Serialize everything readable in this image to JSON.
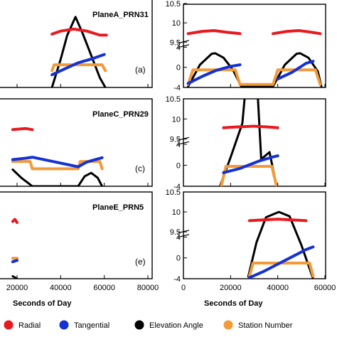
{
  "chart_data": {
    "type": "line",
    "x_axis_label": "Seconds of Day",
    "legend": {
      "placement": "bottom",
      "entries": [
        {
          "name": "Radial",
          "color": "#e8191f"
        },
        {
          "name": "Tangential",
          "color": "#1431d6"
        },
        {
          "name": "Elevation Angle",
          "color": "#000000"
        },
        {
          "name": "Station Number",
          "color": "#f29a3a"
        }
      ]
    },
    "left_x_ticks": [
      "20000",
      "40000",
      "60000",
      "80000"
    ],
    "right_x_ticks": [
      "0",
      "20000",
      "40000",
      "60000"
    ],
    "right_y_ticks": [
      "10.5",
      "10",
      "9.5",
      "4",
      "0",
      "-4"
    ],
    "panels": [
      {
        "title": "PlaneA_PRN31",
        "tag": "(a)",
        "left": {
          "radial": [
            [
              36000,
              8.3
            ],
            [
              40000,
              8.6
            ],
            [
              46000,
              8.8
            ],
            [
              52000,
              8.6
            ],
            [
              58000,
              8.2
            ],
            [
              61000,
              8.2
            ]
          ],
          "tangential": [
            [
              36000,
              0.2
            ],
            [
              42000,
              1.5
            ],
            [
              48000,
              2.8
            ],
            [
              54000,
              3.6
            ],
            [
              60000,
              4.6
            ]
          ],
          "elevation": [
            [
              36000,
              0
            ],
            [
              40000,
              35
            ],
            [
              43000,
              65
            ],
            [
              46800,
              88
            ],
            [
              50000,
              68
            ],
            [
              54000,
              40
            ],
            [
              58000,
              12
            ],
            [
              60500,
              0
            ]
          ],
          "station": [
            [
              36000,
              0.0
            ],
            [
              37000,
              1.0
            ],
            [
              59000,
              1.0
            ],
            [
              60500,
              0.0
            ]
          ]
        },
        "right": {
          "radial": [
            [
              2000,
              9.72
            ],
            [
              8000,
              9.78
            ],
            [
              13000,
              9.8
            ],
            [
              18000,
              9.76
            ],
            [
              24000,
              9.72
            ]
          ],
          "tangential": [
            [
              2000,
              -3.2
            ],
            [
              8000,
              -1.8
            ],
            [
              14000,
              -0.6
            ],
            [
              20000,
              0.2
            ],
            [
              24000,
              0.5
            ],
            [
              40000,
              -2.3
            ],
            [
              46000,
              -1.0
            ],
            [
              52000,
              0.8
            ],
            [
              55000,
              1.2
            ]
          ],
          "elevation": [
            [
              2000,
              -3.8
            ],
            [
              7000,
              0.5
            ],
            [
              12000,
              2.7
            ],
            [
              13500,
              2.8
            ],
            [
              17000,
              1.9
            ],
            [
              21000,
              -0.5
            ],
            [
              24500,
              -3.8
            ],
            [
              38000,
              -3.8
            ],
            [
              43000,
              0.5
            ],
            [
              48000,
              2.7
            ],
            [
              49500,
              2.8
            ],
            [
              53000,
              1.9
            ],
            [
              57000,
              -0.8
            ],
            [
              58500,
              -3.8
            ]
          ],
          "station": [
            [
              2000,
              -3.4
            ],
            [
              4000,
              -0.5
            ],
            [
              22000,
              -0.5
            ],
            [
              24000,
              -3.4
            ],
            [
              38000,
              -3.4
            ],
            [
              40000,
              -0.5
            ],
            [
              56000,
              -0.5
            ],
            [
              58000,
              -3.4
            ]
          ],
          "radial2": [
            [
              38000,
              9.72
            ],
            [
              44000,
              9.78
            ],
            [
              49000,
              9.8
            ],
            [
              54000,
              9.76
            ],
            [
              58000,
              9.72
            ]
          ]
        }
      },
      {
        "title": "PlaneC_PRN29",
        "tag": "(c)",
        "left": {
          "radial": [
            [
              18000,
              8.4
            ],
            [
              24000,
              8.5
            ],
            [
              27000,
              8.4
            ],
            [
              48000,
              8.3
            ],
            [
              53000,
              8.4
            ],
            [
              59000,
              8.3
            ]
          ],
          "tangential": [
            [
              18000,
              3.0
            ],
            [
              24000,
              3.3
            ],
            [
              27000,
              3.5
            ],
            [
              48000,
              1.5
            ],
            [
              52000,
              2.5
            ],
            [
              59000,
              3.4
            ]
          ],
          "elevation": [
            [
              18000,
              20
            ],
            [
              22000,
              10
            ],
            [
              26000,
              2
            ],
            [
              27000,
              0
            ],
            [
              48000,
              0
            ],
            [
              51000,
              12
            ],
            [
              54000,
              16
            ],
            [
              57000,
              10
            ],
            [
              59000,
              0
            ]
          ],
          "station": [
            [
              18000,
              1.2
            ],
            [
              26000,
              1.2
            ],
            [
              27000,
              0
            ],
            [
              48000,
              0
            ],
            [
              49000,
              1.2
            ],
            [
              58000,
              1.2
            ],
            [
              59000,
              0
            ]
          ]
        },
        "right": {
          "radial": [
            [
              17000,
              9.78
            ],
            [
              22000,
              9.8
            ],
            [
              30000,
              9.82
            ],
            [
              36000,
              9.8
            ],
            [
              40000,
              9.78
            ]
          ],
          "tangential": [
            [
              17000,
              -1.4
            ],
            [
              24000,
              -0.6
            ],
            [
              32000,
              0.8
            ],
            [
              38000,
              1.6
            ],
            [
              40000,
              1.8
            ]
          ],
          "elevation": [
            [
              15500,
              -4
            ],
            [
              20000,
              1.5
            ],
            [
              25000,
              8
            ],
            [
              29500,
              12.8
            ],
            [
              33000,
              9
            ],
            [
              36500,
              2.5
            ],
            [
              39500,
              -4
            ]
          ],
          "station": [
            [
              16000,
              -4
            ],
            [
              18000,
              -0.2
            ],
            [
              37500,
              -0.2
            ],
            [
              39500,
              -4
            ]
          ]
        }
      },
      {
        "title": "PlaneE_PRN5",
        "tag": "(e)",
        "left": {
          "radial": [
            [
              18000,
              8.5
            ],
            [
              19000,
              8.7
            ],
            [
              20000,
              8.4
            ]
          ],
          "tangential": [
            [
              18000,
              1.0
            ],
            [
              20000,
              1.3
            ]
          ],
          "elevation": [
            [
              18000,
              3
            ],
            [
              20000,
              0
            ]
          ],
          "station": [
            [
              18000,
              0.5
            ],
            [
              20000,
              0.5
            ]
          ]
        },
        "right": {
          "radial": [
            [
              28000,
              9.78
            ],
            [
              34000,
              9.8
            ],
            [
              40000,
              9.82
            ],
            [
              46000,
              9.8
            ],
            [
              52000,
              9.78
            ]
          ],
          "tangential": [
            [
              28000,
              -3.8
            ],
            [
              34000,
              -2.6
            ],
            [
              40000,
              -1.2
            ],
            [
              46000,
              0.2
            ],
            [
              52000,
              1.6
            ],
            [
              55000,
              2.1
            ]
          ],
          "elevation": [
            [
              27500,
              -3.6
            ],
            [
              31000,
              3
            ],
            [
              35000,
              7.8
            ],
            [
              40500,
              10
            ],
            [
              45000,
              8
            ],
            [
              50000,
              2.5
            ],
            [
              55000,
              -4
            ]
          ],
          "station": [
            [
              28000,
              -3.5
            ],
            [
              29500,
              -1.0
            ],
            [
              53500,
              -1.0
            ],
            [
              55000,
              -3.5
            ]
          ]
        }
      }
    ]
  }
}
